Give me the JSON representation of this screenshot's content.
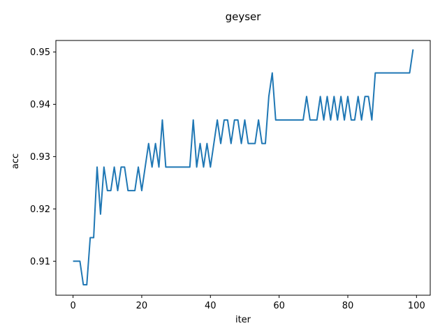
{
  "chart_data": {
    "type": "line",
    "title": "geyser",
    "xlabel": "iter",
    "ylabel": "acc",
    "xlim": [
      -5,
      104
    ],
    "ylim": [
      0.9035,
      0.9522
    ],
    "xticks": [
      0,
      20,
      40,
      60,
      80,
      100
    ],
    "yticks": [
      0.91,
      0.92,
      0.93,
      0.94,
      0.95
    ],
    "xtick_labels": [
      "0",
      "20",
      "40",
      "60",
      "80",
      "100"
    ],
    "ytick_labels": [
      "0.91",
      "0.92",
      "0.93",
      "0.94",
      "0.95"
    ],
    "grid": false,
    "series": [
      {
        "color": "#1f77b4",
        "x": [
          0,
          1,
          2,
          3,
          4,
          5,
          6,
          7,
          8,
          9,
          10,
          11,
          12,
          13,
          14,
          15,
          16,
          17,
          18,
          19,
          20,
          21,
          22,
          23,
          24,
          25,
          26,
          27,
          28,
          29,
          30,
          31,
          32,
          33,
          34,
          35,
          36,
          37,
          38,
          39,
          40,
          41,
          42,
          43,
          44,
          45,
          46,
          47,
          48,
          49,
          50,
          51,
          52,
          53,
          54,
          55,
          56,
          57,
          58,
          59,
          60,
          61,
          62,
          63,
          64,
          65,
          66,
          67,
          68,
          69,
          70,
          71,
          72,
          73,
          74,
          75,
          76,
          77,
          78,
          79,
          80,
          81,
          82,
          83,
          84,
          85,
          86,
          87,
          88,
          89,
          90,
          91,
          92,
          93,
          94,
          95,
          96,
          97,
          98,
          99
        ],
        "values": [
          0.91,
          0.91,
          0.91,
          0.9055,
          0.9055,
          0.9145,
          0.9145,
          0.928,
          0.919,
          0.928,
          0.9235,
          0.9235,
          0.928,
          0.9235,
          0.928,
          0.928,
          0.9235,
          0.9235,
          0.9235,
          0.928,
          0.9235,
          0.928,
          0.9325,
          0.928,
          0.9325,
          0.928,
          0.937,
          0.928,
          0.928,
          0.928,
          0.928,
          0.928,
          0.928,
          0.928,
          0.928,
          0.937,
          0.928,
          0.9325,
          0.928,
          0.9325,
          0.928,
          0.9325,
          0.937,
          0.9325,
          0.937,
          0.937,
          0.9325,
          0.937,
          0.937,
          0.9325,
          0.937,
          0.9325,
          0.9325,
          0.9325,
          0.937,
          0.9325,
          0.9325,
          0.9415,
          0.946,
          0.937,
          0.937,
          0.937,
          0.937,
          0.937,
          0.937,
          0.937,
          0.937,
          0.937,
          0.9415,
          0.937,
          0.937,
          0.937,
          0.9415,
          0.937,
          0.9415,
          0.937,
          0.9415,
          0.937,
          0.9415,
          0.937,
          0.9415,
          0.937,
          0.937,
          0.9415,
          0.937,
          0.9415,
          0.9415,
          0.937,
          0.946,
          0.946,
          0.946,
          0.946,
          0.946,
          0.946,
          0.946,
          0.946,
          0.946,
          0.946,
          0.946,
          0.9505
        ]
      }
    ]
  }
}
